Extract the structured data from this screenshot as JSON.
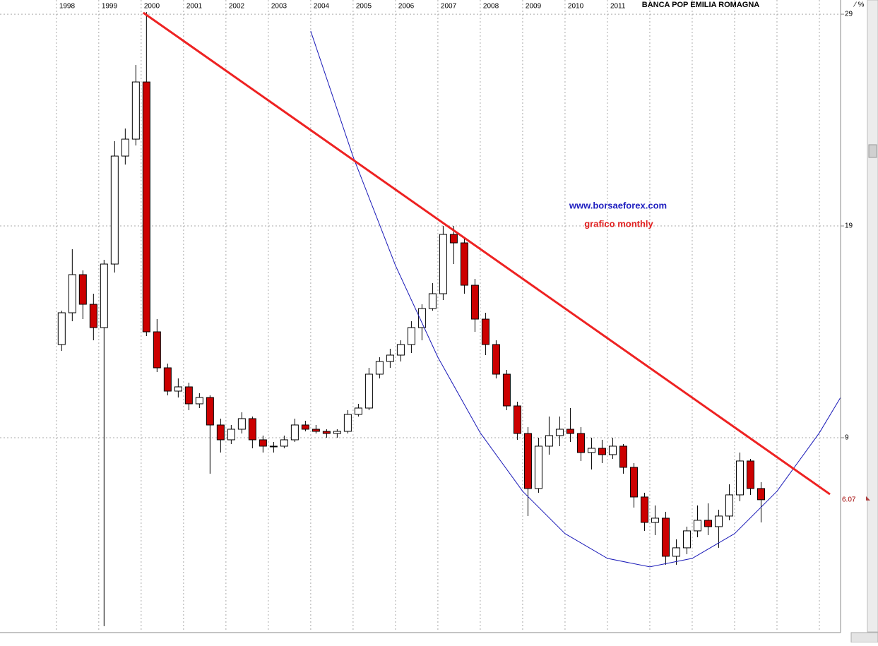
{
  "chart_data": {
    "type": "candlestick",
    "title": "BANCA POP EMILIA ROMAGNA",
    "annotations": [
      "www.borsaeforex.com",
      "grafico monthly"
    ],
    "last_price": 6.07,
    "x": [
      1998.125,
      1998.375,
      1998.625,
      1998.875,
      1999.125,
      1999.375,
      1999.625,
      1999.875,
      2000.125,
      2000.375,
      2000.625,
      2000.875,
      2001.125,
      2001.375,
      2001.625,
      2001.875,
      2002.125,
      2002.375,
      2002.625,
      2002.875,
      2003.125,
      2003.375,
      2003.625,
      2003.875,
      2004.125,
      2004.375,
      2004.625,
      2004.875,
      2005.125,
      2005.375,
      2005.625,
      2005.875,
      2006.125,
      2006.375,
      2006.625,
      2006.875,
      2007.125,
      2007.375,
      2007.625,
      2007.875,
      2008.125,
      2008.375,
      2008.625,
      2008.875,
      2009.125,
      2009.375,
      2009.625,
      2009.875,
      2010.125,
      2010.375,
      2010.625,
      2010.875,
      2011.125,
      2011.375,
      2011.625,
      2011.875,
      2012.125,
      2012.375,
      2012.625,
      2012.875,
      2013.125,
      2013.375,
      2013.625,
      2013.875,
      2014.125,
      2014.375,
      2014.625
    ],
    "open": [
      13.4,
      14.9,
      16.7,
      15.3,
      14.2,
      17.2,
      22.3,
      23.1,
      25.8,
      14.0,
      12.3,
      11.2,
      11.4,
      10.6,
      10.9,
      9.6,
      8.9,
      9.4,
      9.9,
      8.9,
      8.6,
      8.6,
      8.9,
      9.6,
      9.4,
      9.3,
      9.2,
      9.3,
      10.1,
      10.4,
      12.0,
      12.6,
      12.9,
      13.4,
      14.2,
      15.1,
      15.8,
      18.6,
      18.2,
      16.2,
      14.6,
      13.4,
      12.0,
      10.5,
      9.2,
      6.6,
      8.6,
      9.1,
      9.4,
      9.2,
      8.3,
      8.5,
      8.2,
      8.6,
      7.6,
      6.2,
      5.0,
      5.2,
      3.4,
      3.8,
      4.6,
      5.1,
      4.8,
      5.3,
      6.3,
      7.9,
      6.6
    ],
    "high": [
      15.0,
      17.9,
      16.9,
      15.8,
      17.4,
      23.0,
      23.6,
      26.6,
      29.1,
      14.6,
      12.5,
      11.8,
      11.6,
      11.1,
      11.0,
      9.9,
      9.6,
      10.2,
      10.0,
      9.1,
      8.8,
      9.1,
      9.9,
      9.8,
      9.6,
      9.4,
      9.4,
      10.3,
      10.6,
      12.3,
      12.8,
      13.2,
      13.6,
      14.5,
      15.3,
      16.3,
      19.0,
      19.0,
      18.4,
      16.5,
      14.9,
      13.6,
      12.2,
      10.7,
      9.5,
      9.0,
      10.0,
      10.0,
      10.4,
      9.5,
      9.0,
      8.9,
      9.0,
      8.7,
      7.8,
      6.4,
      5.8,
      5.5,
      4.2,
      4.8,
      5.8,
      5.9,
      5.6,
      6.8,
      8.3,
      8.0,
      6.9
    ],
    "low": [
      13.1,
      14.5,
      14.6,
      13.6,
      0.1,
      16.8,
      21.9,
      22.8,
      13.8,
      12.1,
      11.0,
      10.9,
      10.3,
      10.4,
      7.3,
      8.3,
      8.7,
      9.2,
      8.5,
      8.3,
      8.3,
      8.5,
      8.8,
      9.3,
      9.2,
      9.0,
      9.0,
      9.2,
      10.0,
      10.3,
      11.8,
      12.3,
      12.6,
      13.0,
      13.6,
      15.0,
      15.5,
      17.2,
      15.8,
      14.0,
      12.9,
      11.8,
      10.3,
      8.9,
      5.3,
      6.4,
      8.2,
      8.6,
      8.8,
      7.9,
      7.5,
      7.8,
      8.0,
      7.3,
      5.7,
      4.6,
      4.4,
      3.0,
      3.0,
      3.5,
      4.3,
      4.4,
      3.8,
      5.1,
      6.0,
      6.3,
      5.0
    ],
    "close": [
      14.9,
      16.7,
      15.3,
      14.2,
      17.2,
      22.3,
      23.1,
      25.8,
      14.0,
      12.3,
      11.2,
      11.4,
      10.6,
      10.9,
      9.6,
      8.9,
      9.4,
      9.9,
      8.9,
      8.6,
      8.6,
      8.9,
      9.6,
      9.4,
      9.3,
      9.2,
      9.3,
      10.1,
      10.4,
      12.0,
      12.6,
      12.9,
      13.4,
      14.2,
      15.1,
      15.8,
      18.6,
      18.2,
      16.2,
      14.6,
      13.4,
      12.0,
      10.5,
      9.2,
      6.6,
      8.6,
      9.1,
      9.4,
      9.2,
      8.3,
      8.5,
      8.2,
      8.6,
      7.6,
      6.2,
      5.0,
      5.2,
      3.4,
      3.8,
      4.6,
      5.1,
      4.8,
      5.3,
      6.3,
      7.9,
      6.6,
      6.07
    ],
    "up_color": "#ffffff",
    "down_color": "#cc0000",
    "trendline": {
      "color": "#ee2222",
      "x": [
        2000.05,
        2016.25
      ],
      "values": [
        29.07,
        6.33
      ]
    },
    "curve": {
      "color": "#1a1ab8",
      "x": [
        2004,
        2005,
        2006,
        2007,
        2008,
        2009,
        2010,
        2011,
        2012,
        2013,
        2014,
        2015,
        2016,
        2016.5
      ],
      "values": [
        28.2,
        22.27,
        17.13,
        12.8,
        9.23,
        6.47,
        4.47,
        3.3,
        2.9,
        3.3,
        4.47,
        6.47,
        9.23,
        10.9
      ]
    },
    "xlim": [
      1996.67,
      2016.5
    ],
    "xticks": [
      1998,
      1999,
      2000,
      2001,
      2002,
      2003,
      2004,
      2005,
      2006,
      2007,
      2008,
      2009,
      2010,
      2011,
      {
        "value": 2012,
        "label": null
      },
      {
        "value": 2013,
        "label": null
      },
      {
        "value": 2014,
        "label": null
      },
      {
        "value": 2015,
        "label": null
      },
      {
        "value": 2016,
        "label": null
      }
    ],
    "ylim": [
      -0.17,
      29.67
    ],
    "yticks": [
      9,
      19,
      29
    ],
    "grid": true
  }
}
